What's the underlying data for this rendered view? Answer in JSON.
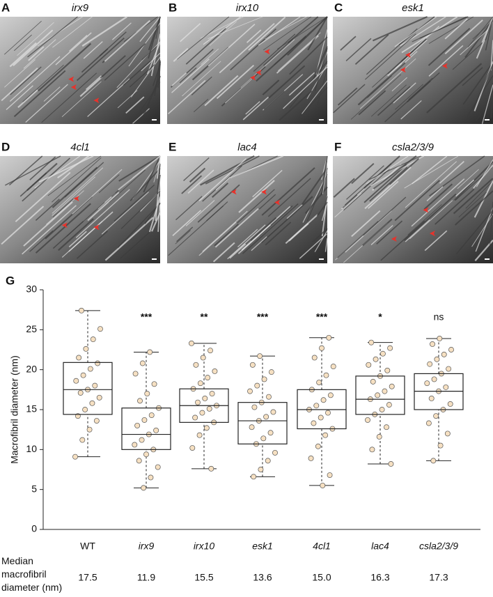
{
  "panels": [
    {
      "letter": "A",
      "title": "irx9"
    },
    {
      "letter": "B",
      "title": "irx10"
    },
    {
      "letter": "C",
      "title": "esk1"
    },
    {
      "letter": "D",
      "title": "4cl1"
    },
    {
      "letter": "E",
      "title": "lac4"
    },
    {
      "letter": "F",
      "title": "csla2/3/9"
    }
  ],
  "chart_data": {
    "type": "box",
    "panel_letter": "G",
    "ylabel": "Macrofibril diameter (nm)",
    "categories": [
      "WT",
      "irx9",
      "irx10",
      "esk1",
      "4cl1",
      "lac4",
      "csla2/3/9"
    ],
    "category_italic": [
      false,
      true,
      true,
      true,
      true,
      true,
      true
    ],
    "whislo": [
      9.1,
      5.2,
      7.6,
      6.6,
      5.5,
      8.2,
      8.6
    ],
    "q1": [
      14.4,
      10.0,
      13.4,
      10.7,
      12.6,
      14.4,
      15.0
    ],
    "median": [
      17.5,
      11.9,
      15.5,
      13.6,
      15.0,
      16.3,
      17.3
    ],
    "q3": [
      20.9,
      15.2,
      17.6,
      15.9,
      17.5,
      19.2,
      19.5
    ],
    "whishi": [
      27.4,
      22.2,
      23.3,
      21.7,
      24.0,
      23.4,
      23.9
    ],
    "annotations": [
      null,
      "***",
      "**",
      "***",
      "***",
      "*",
      "ns"
    ],
    "median_row_label": "Median macrofibril diameter (nm)",
    "median_labels": [
      "17.5",
      "11.9",
      "15.5",
      "13.6",
      "15.0",
      "16.3",
      "17.3"
    ],
    "points": [
      [
        9.1,
        11.2,
        12.5,
        13.6,
        14.2,
        15.0,
        15.8,
        16.5,
        17.1,
        17.5,
        18.0,
        18.6,
        19.3,
        20.1,
        20.8,
        21.5,
        22.6,
        23.8,
        25.1,
        27.4
      ],
      [
        5.2,
        6.5,
        7.8,
        8.6,
        9.4,
        10.0,
        10.6,
        11.2,
        11.9,
        12.4,
        13.0,
        13.7,
        14.3,
        15.2,
        16.1,
        17.0,
        18.2,
        19.5,
        20.8,
        22.2
      ],
      [
        7.6,
        10.2,
        11.8,
        12.7,
        13.4,
        14.0,
        14.6,
        15.1,
        15.5,
        15.9,
        16.4,
        17.0,
        17.6,
        18.3,
        19.0,
        19.8,
        20.6,
        21.5,
        22.4,
        23.3
      ],
      [
        6.6,
        7.5,
        8.6,
        9.6,
        10.7,
        11.4,
        12.1,
        12.8,
        13.6,
        14.1,
        14.7,
        15.3,
        15.9,
        16.6,
        17.3,
        18.0,
        18.8,
        19.7,
        20.6,
        21.7
      ],
      [
        5.5,
        6.8,
        8.9,
        10.4,
        11.8,
        12.6,
        13.3,
        14.0,
        14.6,
        15.0,
        15.5,
        16.2,
        16.8,
        17.5,
        18.4,
        19.3,
        20.4,
        21.5,
        22.7,
        24.0
      ],
      [
        8.2,
        10.0,
        11.6,
        12.8,
        13.7,
        14.4,
        15.0,
        15.6,
        16.3,
        16.8,
        17.3,
        17.9,
        18.5,
        19.2,
        19.9,
        20.6,
        21.3,
        22.0,
        22.7,
        23.4
      ],
      [
        8.6,
        10.5,
        12.0,
        13.3,
        14.2,
        15.0,
        15.7,
        16.4,
        17.3,
        17.8,
        18.3,
        18.8,
        19.5,
        20.1,
        20.7,
        21.3,
        21.9,
        22.5,
        23.2,
        23.9
      ]
    ],
    "point_color": "#f6e0c2",
    "ylim": [
      0,
      30
    ],
    "yticks": [
      0,
      5,
      10,
      15,
      20,
      25,
      30
    ]
  }
}
